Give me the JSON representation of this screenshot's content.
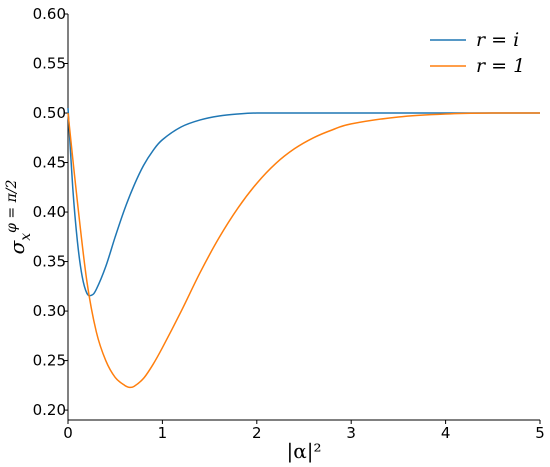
{
  "chart_data": {
    "type": "line",
    "title": "",
    "xlabel": "|α|²",
    "ylabel": "σ_x^{φ=π/2}",
    "xlim": [
      0,
      5
    ],
    "ylim": [
      0.19,
      0.6
    ],
    "xticks": [
      0,
      1,
      2,
      3,
      4,
      5
    ],
    "yticks": [
      0.2,
      0.25,
      0.3,
      0.35,
      0.4,
      0.45,
      0.5,
      0.55,
      0.6
    ],
    "xtick_labels": [
      "0",
      "1",
      "2",
      "3",
      "4",
      "5"
    ],
    "ytick_labels": [
      "0.20",
      "0.25",
      "0.30",
      "0.35",
      "0.40",
      "0.45",
      "0.50",
      "0.55",
      "0.60"
    ],
    "grid": false,
    "legend_position": "top-right",
    "series": [
      {
        "name": "r = i",
        "color": "#1f77b4",
        "x": [
          0,
          0.05,
          0.1,
          0.15,
          0.2,
          0.25,
          0.3,
          0.4,
          0.5,
          0.6,
          0.7,
          0.8,
          0.9,
          1.0,
          1.2,
          1.4,
          1.6,
          1.8,
          2.0,
          2.5,
          3.0,
          4.0,
          5.0
        ],
        "y": [
          0.505,
          0.425,
          0.37,
          0.335,
          0.318,
          0.316,
          0.322,
          0.345,
          0.375,
          0.403,
          0.427,
          0.447,
          0.462,
          0.473,
          0.486,
          0.493,
          0.497,
          0.499,
          0.5,
          0.5,
          0.5,
          0.5,
          0.5
        ]
      },
      {
        "name": "r = 1",
        "color": "#ff7f0e",
        "x": [
          0,
          0.1,
          0.2,
          0.3,
          0.4,
          0.5,
          0.6,
          0.65,
          0.7,
          0.8,
          0.9,
          1.0,
          1.2,
          1.4,
          1.6,
          1.8,
          2.0,
          2.2,
          2.4,
          2.6,
          2.8,
          3.0,
          3.5,
          4.0,
          4.5,
          5.0
        ],
        "y": [
          0.5,
          0.41,
          0.33,
          0.279,
          0.25,
          0.233,
          0.225,
          0.223,
          0.224,
          0.232,
          0.246,
          0.263,
          0.3,
          0.339,
          0.374,
          0.404,
          0.429,
          0.449,
          0.464,
          0.475,
          0.483,
          0.489,
          0.496,
          0.499,
          0.5,
          0.5
        ]
      }
    ]
  }
}
